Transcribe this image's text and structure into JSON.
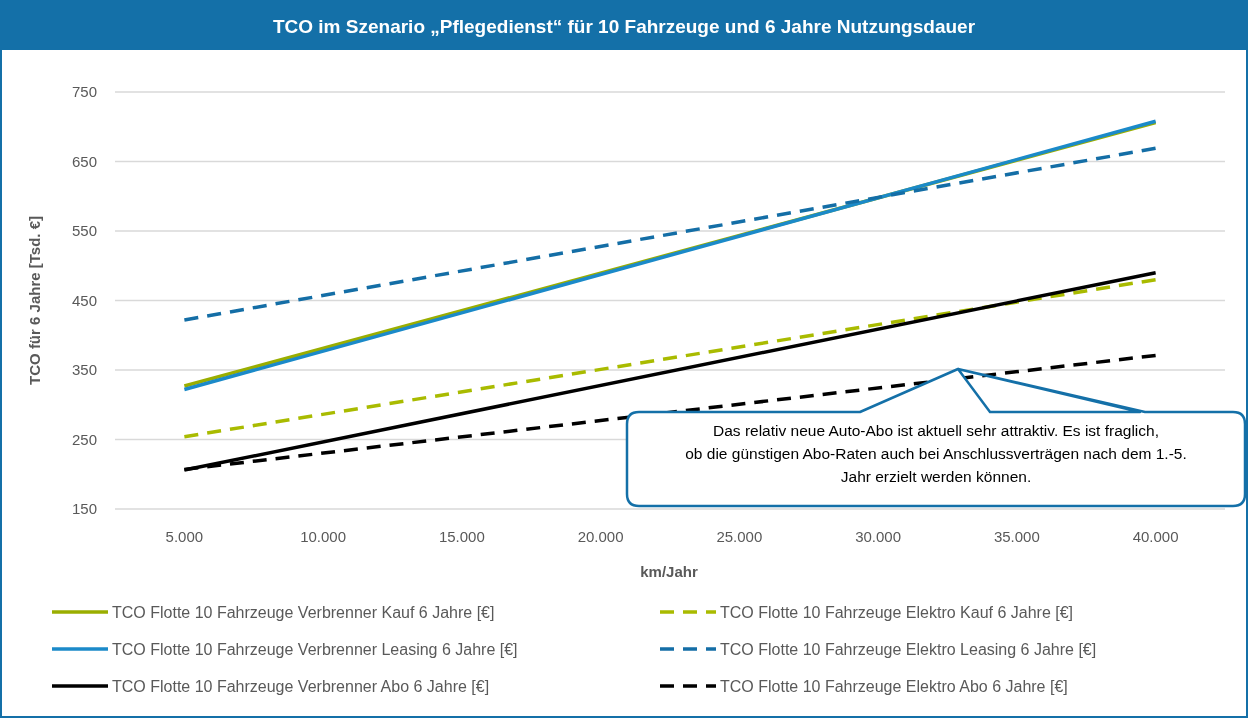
{
  "chart_data": {
    "type": "line",
    "title": "TCO im Szenario „Pflegedienst“ für 10 Fahrzeuge und 6 Jahre Nutzungsdauer",
    "xlabel": "km/Jahr",
    "ylabel": "TCO für 6 Jahre [Tsd. €]",
    "x": [
      5000,
      40000
    ],
    "xlim": [
      2500,
      42500
    ],
    "xticks": [
      {
        "value": 5000,
        "label": "5.000"
      },
      {
        "value": 10000,
        "label": "10.000"
      },
      {
        "value": 15000,
        "label": "15.000"
      },
      {
        "value": 20000,
        "label": "20.000"
      },
      {
        "value": 25000,
        "label": "25.000"
      },
      {
        "value": 30000,
        "label": "30.000"
      },
      {
        "value": 35000,
        "label": "35.000"
      },
      {
        "value": 40000,
        "label": "40.000"
      }
    ],
    "ylim": [
      150,
      750
    ],
    "yticks": [
      150,
      250,
      350,
      450,
      550,
      650,
      750
    ],
    "grid": "y",
    "legend": "bottom",
    "series": [
      {
        "name": "TCO Flotte 10 Fahrzeuge Verbrenner Kauf 6 Jahre [€]",
        "color": "#9aae00",
        "values": [
          327,
          706
        ],
        "line_style": "solid"
      },
      {
        "name": "TCO Flotte 10 Fahrzeuge Elektro Kauf 6 Jahre [€]",
        "color": "#a9bb00",
        "values": [
          254,
          480
        ],
        "line_style": "dashed"
      },
      {
        "name": "TCO Flotte 10 Fahrzeuge Verbrenner Leasing 6 Jahre [€]",
        "color": "#1b8ac9",
        "values": [
          322,
          708
        ],
        "line_style": "solid"
      },
      {
        "name": "TCO Flotte 10 Fahrzeuge Elektro Leasing 6 Jahre [€]",
        "color": "#146ea6",
        "values": [
          422,
          669
        ],
        "line_style": "dashed"
      },
      {
        "name": "TCO Flotte 10 Fahrzeuge Verbrenner Abo 6 Jahre [€]",
        "color": "#000000",
        "values": [
          206,
          490
        ],
        "line_style": "solid"
      },
      {
        "name": "TCO Flotte 10 Fahrzeuge Elektro Abo 6 Jahre [€]",
        "color": "#000000",
        "values": [
          207,
          371
        ],
        "line_style": "dashed"
      }
    ],
    "annotations": [
      "Das relativ neue Auto-Abo ist aktuell sehr attraktiv. Es ist fraglich, ob die günstigen Abo-Raten auch bei Anschlussverträgen nach dem 1.-5. Jahr erzielt werden können."
    ]
  }
}
